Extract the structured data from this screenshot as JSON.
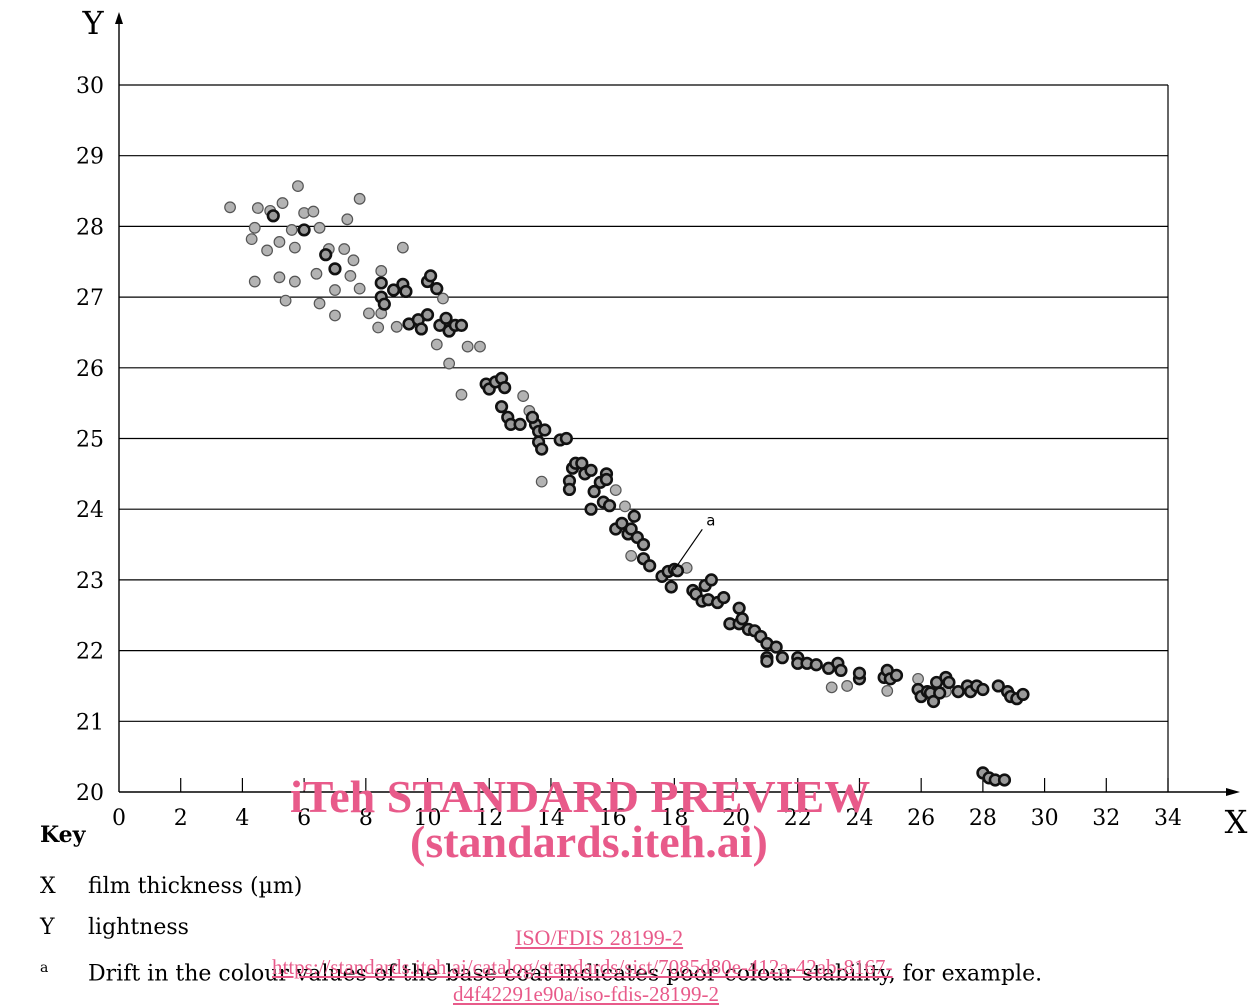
{
  "chart_data": {
    "type": "scatter",
    "xlabel": "X",
    "ylabel": "Y",
    "xlim": [
      0,
      34
    ],
    "ylim": [
      20,
      30
    ],
    "x_ticks": [
      "0",
      "2",
      "4",
      "6",
      "8",
      "10",
      "12",
      "14",
      "16",
      "18",
      "20",
      "22",
      "24",
      "26",
      "28",
      "30",
      "32",
      "34"
    ],
    "y_ticks": [
      "20",
      "21",
      "22",
      "23",
      "24",
      "25",
      "26",
      "27",
      "28",
      "29",
      "30"
    ],
    "grid": "horizontal",
    "annotation": {
      "label": "a",
      "x": 17.9,
      "y": 23.1,
      "text_x": 19.1,
      "text_y": 23.8
    },
    "series": [
      {
        "marker": "grey-filled-circle",
        "color": "#b3b3b3",
        "points": [
          [
            3.6,
            28.27
          ],
          [
            4.3,
            27.82
          ],
          [
            4.4,
            27.98
          ],
          [
            4.5,
            28.26
          ],
          [
            4.4,
            27.22
          ],
          [
            4.9,
            28.22
          ],
          [
            5.3,
            28.33
          ],
          [
            5.8,
            28.57
          ],
          [
            4.8,
            27.66
          ],
          [
            5.2,
            27.78
          ],
          [
            5.6,
            27.95
          ],
          [
            5.7,
            27.7
          ],
          [
            6.0,
            28.19
          ],
          [
            6.3,
            28.21
          ],
          [
            6.5,
            27.98
          ],
          [
            5.2,
            27.28
          ],
          [
            5.4,
            26.95
          ],
          [
            5.7,
            27.22
          ],
          [
            6.4,
            27.33
          ],
          [
            6.5,
            26.91
          ],
          [
            6.8,
            27.68
          ],
          [
            7.0,
            27.1
          ],
          [
            7.0,
            26.74
          ],
          [
            7.3,
            27.68
          ],
          [
            7.4,
            28.1
          ],
          [
            7.5,
            27.3
          ],
          [
            7.6,
            27.52
          ],
          [
            7.8,
            27.12
          ],
          [
            7.8,
            28.39
          ],
          [
            8.1,
            26.77
          ],
          [
            8.4,
            26.57
          ],
          [
            8.5,
            27.37
          ],
          [
            8.5,
            26.77
          ],
          [
            9.0,
            26.58
          ],
          [
            9.2,
            27.7
          ],
          [
            10.3,
            26.33
          ],
          [
            10.5,
            26.98
          ],
          [
            10.7,
            26.06
          ],
          [
            11.1,
            25.62
          ],
          [
            11.3,
            26.3
          ],
          [
            11.7,
            26.3
          ],
          [
            13.1,
            25.6
          ],
          [
            13.3,
            25.39
          ],
          [
            13.7,
            24.39
          ],
          [
            16.1,
            24.27
          ],
          [
            16.6,
            23.34
          ],
          [
            16.4,
            24.04
          ],
          [
            18.4,
            23.17
          ],
          [
            23.1,
            21.48
          ],
          [
            23.6,
            21.5
          ],
          [
            24.9,
            21.43
          ],
          [
            25.9,
            21.6
          ],
          [
            26.8,
            21.42
          ]
        ]
      },
      {
        "marker": "dark-outlined-circle",
        "color": "#999999",
        "points": [
          [
            5.0,
            28.15
          ],
          [
            6.0,
            27.95
          ],
          [
            6.7,
            27.6
          ],
          [
            7.0,
            27.4
          ],
          [
            8.5,
            27.2
          ],
          [
            8.5,
            27.0
          ],
          [
            8.6,
            26.9
          ],
          [
            8.9,
            27.1
          ],
          [
            9.2,
            27.18
          ],
          [
            9.3,
            27.08
          ],
          [
            9.4,
            26.62
          ],
          [
            9.7,
            26.68
          ],
          [
            9.8,
            26.55
          ],
          [
            10.0,
            26.75
          ],
          [
            10.0,
            27.22
          ],
          [
            10.1,
            27.3
          ],
          [
            10.3,
            27.12
          ],
          [
            10.4,
            26.6
          ],
          [
            10.6,
            26.7
          ],
          [
            10.7,
            26.52
          ],
          [
            10.9,
            26.6
          ],
          [
            11.1,
            26.6
          ],
          [
            11.9,
            25.77
          ],
          [
            12.0,
            25.7
          ],
          [
            12.2,
            25.8
          ],
          [
            12.4,
            25.85
          ],
          [
            12.5,
            25.72
          ],
          [
            12.6,
            25.3
          ],
          [
            12.7,
            25.2
          ],
          [
            12.4,
            25.45
          ],
          [
            13.0,
            25.2
          ],
          [
            13.5,
            25.2
          ],
          [
            13.6,
            25.1
          ],
          [
            13.6,
            24.95
          ],
          [
            13.7,
            24.85
          ],
          [
            13.8,
            25.12
          ],
          [
            13.4,
            25.3
          ],
          [
            14.3,
            24.98
          ],
          [
            14.5,
            25.0
          ],
          [
            14.6,
            24.4
          ],
          [
            14.6,
            24.28
          ],
          [
            14.7,
            24.58
          ],
          [
            14.8,
            24.65
          ],
          [
            15.0,
            24.65
          ],
          [
            15.1,
            24.5
          ],
          [
            15.3,
            24.55
          ],
          [
            15.4,
            24.25
          ],
          [
            15.3,
            24.0
          ],
          [
            15.6,
            24.38
          ],
          [
            15.7,
            24.1
          ],
          [
            15.8,
            24.5
          ],
          [
            15.9,
            24.05
          ],
          [
            15.8,
            24.42
          ],
          [
            16.1,
            23.72
          ],
          [
            16.3,
            23.8
          ],
          [
            16.5,
            23.65
          ],
          [
            16.6,
            23.72
          ],
          [
            16.7,
            23.9
          ],
          [
            16.8,
            23.6
          ],
          [
            17.0,
            23.5
          ],
          [
            17.0,
            23.3
          ],
          [
            17.2,
            23.2
          ],
          [
            17.6,
            23.05
          ],
          [
            17.8,
            23.12
          ],
          [
            17.9,
            22.9
          ],
          [
            18.0,
            23.15
          ],
          [
            18.1,
            23.13
          ],
          [
            18.6,
            22.85
          ],
          [
            18.7,
            22.8
          ],
          [
            18.9,
            22.7
          ],
          [
            19.0,
            22.92
          ],
          [
            19.1,
            22.72
          ],
          [
            19.2,
            23.0
          ],
          [
            19.4,
            22.68
          ],
          [
            19.6,
            22.75
          ],
          [
            19.8,
            22.38
          ],
          [
            20.1,
            22.38
          ],
          [
            20.1,
            22.6
          ],
          [
            20.2,
            22.45
          ],
          [
            20.4,
            22.3
          ],
          [
            20.6,
            22.28
          ],
          [
            20.8,
            22.2
          ],
          [
            21.0,
            22.1
          ],
          [
            21.0,
            21.9
          ],
          [
            21.0,
            21.85
          ],
          [
            21.3,
            22.05
          ],
          [
            21.5,
            21.9
          ],
          [
            22.0,
            21.9
          ],
          [
            22.0,
            21.82
          ],
          [
            22.3,
            21.82
          ],
          [
            22.6,
            21.8
          ],
          [
            23.0,
            21.75
          ],
          [
            23.3,
            21.82
          ],
          [
            23.4,
            21.72
          ],
          [
            24.0,
            21.6
          ],
          [
            24.0,
            21.68
          ],
          [
            24.8,
            21.62
          ],
          [
            24.9,
            21.72
          ],
          [
            25.0,
            21.6
          ],
          [
            25.2,
            21.65
          ],
          [
            25.9,
            21.45
          ],
          [
            26.0,
            21.35
          ],
          [
            26.2,
            21.42
          ],
          [
            26.3,
            21.4
          ],
          [
            26.4,
            21.28
          ],
          [
            26.5,
            21.55
          ],
          [
            26.6,
            21.4
          ],
          [
            26.8,
            21.62
          ],
          [
            26.9,
            21.55
          ],
          [
            27.2,
            21.42
          ],
          [
            27.5,
            21.5
          ],
          [
            27.6,
            21.42
          ],
          [
            27.8,
            21.5
          ],
          [
            28.0,
            21.45
          ],
          [
            28.5,
            21.5
          ],
          [
            28.8,
            21.42
          ],
          [
            28.9,
            21.35
          ],
          [
            29.1,
            21.32
          ],
          [
            29.3,
            21.38
          ],
          [
            28.0,
            20.27
          ],
          [
            28.2,
            20.2
          ],
          [
            28.4,
            20.17
          ],
          [
            28.7,
            20.17
          ]
        ]
      }
    ]
  },
  "key": {
    "title": "Key",
    "items": [
      {
        "symbol": "X",
        "text": "film thickness (µm)"
      },
      {
        "symbol": "Y",
        "text": "lightness"
      },
      {
        "symbol": "a",
        "text": "Drift in the colour values of the base coat indicates poor colour stability, for example."
      }
    ]
  },
  "watermark": {
    "line1": "iTeh STANDARD PREVIEW",
    "line2": "(standards.iteh.ai)",
    "doc_id": "ISO/FDIS 28199-2",
    "url": "https://standards.iteh.ai/catalog/standards/sist/7085d80e-412a-42ab-8167-",
    "url2": "d4f42291e90a/iso-fdis-28199-2",
    "color": "#e85a8a"
  }
}
